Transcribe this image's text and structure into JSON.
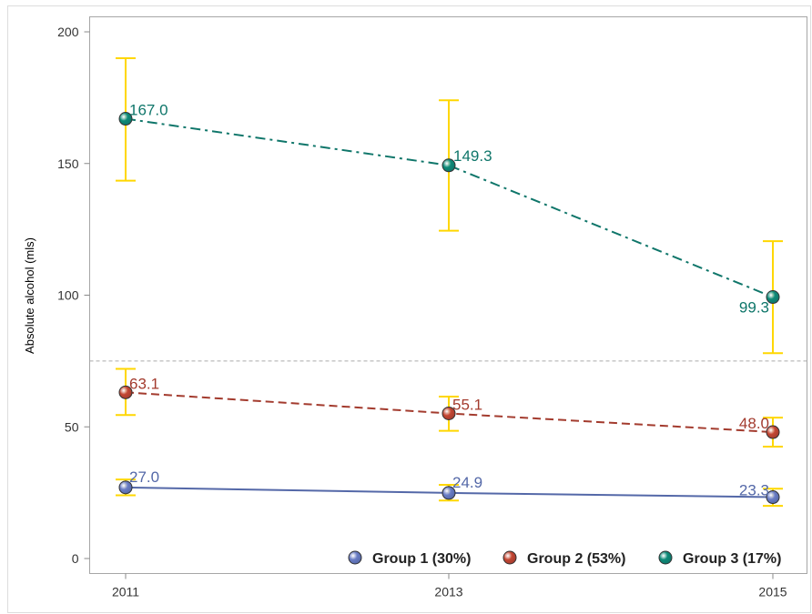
{
  "chart_data": {
    "type": "line",
    "title": "",
    "xlabel": "",
    "ylabel": "Absolute alcohol (mls)",
    "x": [
      2011,
      2013,
      2015
    ],
    "x_tick_labels": [
      "2011",
      "2013",
      "2015"
    ],
    "ylim": [
      0,
      200
    ],
    "y_ticks": [
      0,
      50,
      100,
      150,
      200
    ],
    "y_tick_labels": [
      "0",
      "50",
      "100",
      "150",
      "200"
    ],
    "grid": false,
    "reference_line": {
      "y": 75,
      "style": "dashed"
    },
    "legend_position": "bottom-right-inside",
    "error_bar_color": "#FFD700",
    "series": [
      {
        "name": "Group 1 (30%)",
        "color": "#5468A8",
        "marker_color": "#6A7DC5",
        "line_style": "solid",
        "values": [
          27.0,
          24.9,
          23.3
        ],
        "labels": [
          "27.0",
          "24.9",
          "23.3"
        ],
        "ci_lower": [
          24,
          22,
          20
        ],
        "ci_upper": [
          30,
          28,
          26.5
        ]
      },
      {
        "name": "Group 2 (53%)",
        "color": "#A33B2E",
        "marker_color": "#C44733",
        "line_style": "dashed",
        "values": [
          63.1,
          55.1,
          48.0
        ],
        "labels": [
          "63.1",
          "55.1",
          "48.0"
        ],
        "ci_lower": [
          54.5,
          48.5,
          42.5
        ],
        "ci_upper": [
          72,
          61.5,
          53.5
        ]
      },
      {
        "name": "Group 3 (17%)",
        "color": "#0F766A",
        "marker_color": "#0E8A78",
        "line_style": "dashdot",
        "values": [
          167.0,
          149.3,
          99.3
        ],
        "labels": [
          "167.0",
          "149.3",
          "99.3"
        ],
        "ci_lower": [
          143.5,
          124.5,
          78
        ],
        "ci_upper": [
          190,
          174,
          120.5
        ]
      }
    ]
  }
}
